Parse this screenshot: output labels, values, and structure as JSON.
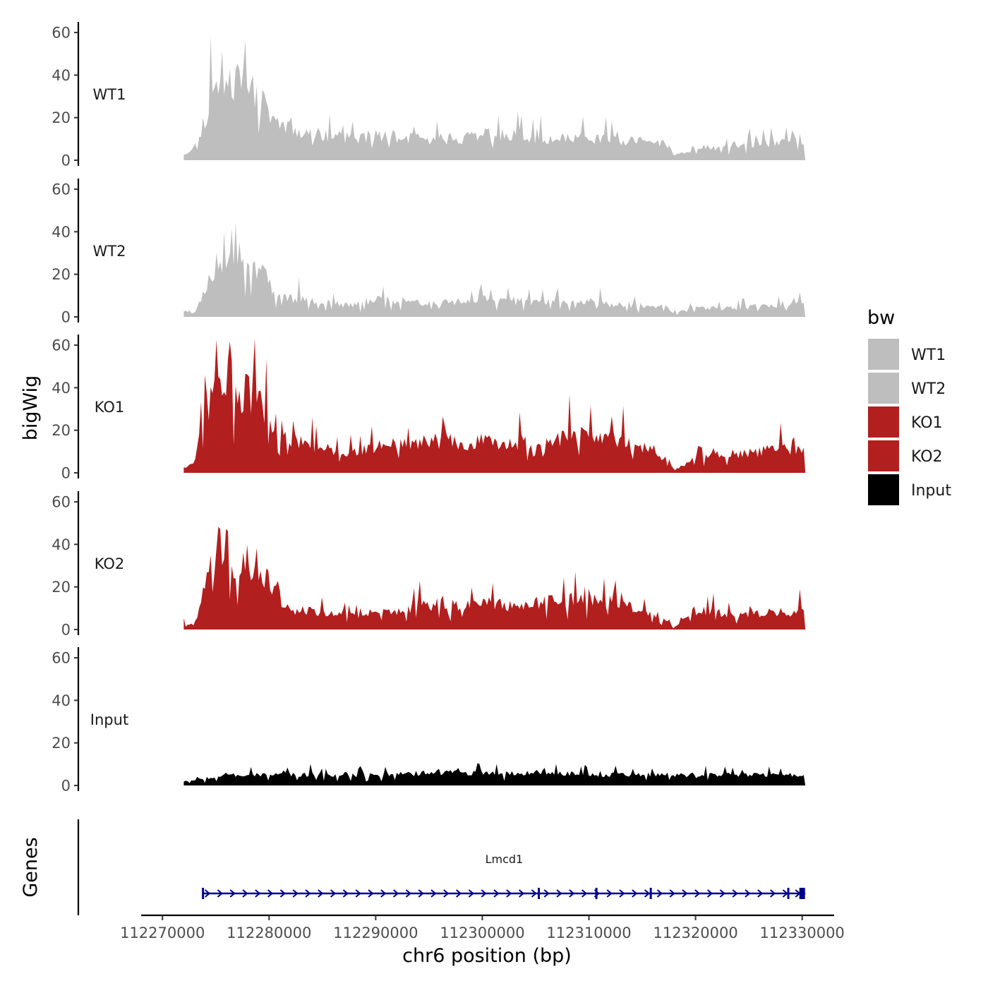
{
  "chart_data": {
    "type": "area",
    "y_axis_title": "bigWig",
    "x_axis_title": "chr6 position (bp)",
    "gene_track_title": "Genes",
    "x_range": [
      112268000,
      112333000
    ],
    "y_range": [
      0,
      65
    ],
    "y_ticks": [
      0,
      20,
      40,
      60
    ],
    "y_tick_labels": [
      "0",
      "20",
      "40",
      "60"
    ],
    "x_ticks": [
      112270000,
      112280000,
      112290000,
      112300000,
      112310000,
      112320000,
      112330000
    ],
    "x_tick_labels": [
      "112270000",
      "112280000",
      "112290000",
      "112300000",
      "112310000",
      "112320000",
      "112330000"
    ],
    "data_start": 112272000,
    "data_end": 112330300,
    "legend": {
      "title": "bw",
      "entries": [
        {
          "label": "WT1",
          "color": "#bebebe"
        },
        {
          "label": "WT2",
          "color": "#bebebe"
        },
        {
          "label": "KO1",
          "color": "#b21f1f"
        },
        {
          "label": "KO2",
          "color": "#b21f1f"
        },
        {
          "label": "Input",
          "color": "#000000"
        }
      ]
    },
    "series": [
      {
        "name": "WT1",
        "color": "#bebebe",
        "profile": [
          [
            112272000,
            3
          ],
          [
            112273000,
            6
          ],
          [
            112274000,
            20
          ],
          [
            112275000,
            38
          ],
          [
            112276000,
            42
          ],
          [
            112277000,
            36
          ],
          [
            112278000,
            35
          ],
          [
            112279000,
            30
          ],
          [
            112280000,
            22
          ],
          [
            112281000,
            17
          ],
          [
            112282000,
            15
          ],
          [
            112284000,
            13
          ],
          [
            112286000,
            11
          ],
          [
            112288000,
            10
          ],
          [
            112290000,
            12
          ],
          [
            112292000,
            11
          ],
          [
            112294000,
            10
          ],
          [
            112296000,
            10
          ],
          [
            112298000,
            10
          ],
          [
            112300000,
            12
          ],
          [
            112302000,
            12
          ],
          [
            112304000,
            11
          ],
          [
            112306000,
            9
          ],
          [
            112308000,
            11
          ],
          [
            112310000,
            10
          ],
          [
            112312000,
            10
          ],
          [
            112314000,
            9
          ],
          [
            112316000,
            9
          ],
          [
            112317500,
            7
          ],
          [
            112318000,
            2
          ],
          [
            112319000,
            4
          ],
          [
            112320000,
            6
          ],
          [
            112322000,
            6
          ],
          [
            112324000,
            7
          ],
          [
            112326000,
            8
          ],
          [
            112328000,
            9
          ],
          [
            112330300,
            10
          ]
        ]
      },
      {
        "name": "WT2",
        "color": "#bebebe",
        "profile": [
          [
            112272000,
            3
          ],
          [
            112273000,
            2
          ],
          [
            112274000,
            12
          ],
          [
            112275000,
            24
          ],
          [
            112276000,
            30
          ],
          [
            112277000,
            24
          ],
          [
            112278000,
            26
          ],
          [
            112279000,
            24
          ],
          [
            112280000,
            16
          ],
          [
            112281000,
            10
          ],
          [
            112282000,
            9
          ],
          [
            112284000,
            8
          ],
          [
            112286000,
            6
          ],
          [
            112288000,
            6
          ],
          [
            112290000,
            8
          ],
          [
            112292000,
            8
          ],
          [
            112294000,
            7
          ],
          [
            112296000,
            7
          ],
          [
            112298000,
            7
          ],
          [
            112300000,
            8
          ],
          [
            112302000,
            8
          ],
          [
            112304000,
            7
          ],
          [
            112306000,
            7
          ],
          [
            112308000,
            7
          ],
          [
            112310000,
            7
          ],
          [
            112312000,
            6
          ],
          [
            112314000,
            5
          ],
          [
            112316000,
            6
          ],
          [
            112317500,
            4
          ],
          [
            112318000,
            2
          ],
          [
            112319000,
            3
          ],
          [
            112320000,
            4
          ],
          [
            112322000,
            4
          ],
          [
            112324000,
            4
          ],
          [
            112326000,
            5
          ],
          [
            112328000,
            6
          ],
          [
            112330300,
            7
          ]
        ]
      },
      {
        "name": "KO1",
        "color": "#b21f1f",
        "profile": [
          [
            112272000,
            3
          ],
          [
            112273000,
            4
          ],
          [
            112274000,
            40
          ],
          [
            112275000,
            50
          ],
          [
            112276000,
            44
          ],
          [
            112277000,
            36
          ],
          [
            112278000,
            38
          ],
          [
            112279000,
            35
          ],
          [
            112280000,
            27
          ],
          [
            112281000,
            20
          ],
          [
            112282000,
            15
          ],
          [
            112284000,
            13
          ],
          [
            112286000,
            11
          ],
          [
            112288000,
            10
          ],
          [
            112290000,
            12
          ],
          [
            112292000,
            13
          ],
          [
            112294000,
            14
          ],
          [
            112296000,
            15
          ],
          [
            112298000,
            14
          ],
          [
            112300000,
            15
          ],
          [
            112302000,
            15
          ],
          [
            112304000,
            14
          ],
          [
            112306000,
            15
          ],
          [
            112308000,
            17
          ],
          [
            112310000,
            17
          ],
          [
            112312000,
            16
          ],
          [
            112314000,
            13
          ],
          [
            112316000,
            11
          ],
          [
            112317500,
            5
          ],
          [
            112318000,
            1
          ],
          [
            112319000,
            4
          ],
          [
            112320000,
            7
          ],
          [
            112322000,
            8
          ],
          [
            112324000,
            9
          ],
          [
            112326000,
            10
          ],
          [
            112328000,
            11
          ],
          [
            112330300,
            11
          ]
        ]
      },
      {
        "name": "KO2",
        "color": "#b21f1f",
        "profile": [
          [
            112272000,
            3
          ],
          [
            112273000,
            2
          ],
          [
            112274000,
            20
          ],
          [
            112275000,
            38
          ],
          [
            112276000,
            38
          ],
          [
            112277000,
            27
          ],
          [
            112278000,
            32
          ],
          [
            112279000,
            30
          ],
          [
            112280000,
            24
          ],
          [
            112281000,
            13
          ],
          [
            112282000,
            9
          ],
          [
            112284000,
            9
          ],
          [
            112286000,
            7
          ],
          [
            112288000,
            7
          ],
          [
            112290000,
            8
          ],
          [
            112292000,
            9
          ],
          [
            112294000,
            11
          ],
          [
            112296000,
            12
          ],
          [
            112298000,
            11
          ],
          [
            112300000,
            12
          ],
          [
            112302000,
            12
          ],
          [
            112304000,
            11
          ],
          [
            112306000,
            13
          ],
          [
            112308000,
            14
          ],
          [
            112310000,
            14
          ],
          [
            112312000,
            13
          ],
          [
            112314000,
            10
          ],
          [
            112316000,
            8
          ],
          [
            112317500,
            4
          ],
          [
            112318000,
            1
          ],
          [
            112319000,
            5
          ],
          [
            112320000,
            9
          ],
          [
            112322000,
            8
          ],
          [
            112324000,
            7
          ],
          [
            112326000,
            8
          ],
          [
            112328000,
            8
          ],
          [
            112330300,
            9
          ]
        ]
      },
      {
        "name": "Input",
        "color": "#000000",
        "profile": [
          [
            112272000,
            2
          ],
          [
            112276000,
            5
          ],
          [
            112282000,
            5
          ],
          [
            112290000,
            5
          ],
          [
            112296000,
            6
          ],
          [
            112300000,
            6
          ],
          [
            112306000,
            6
          ],
          [
            112312000,
            5
          ],
          [
            112320000,
            5
          ],
          [
            112326000,
            5
          ],
          [
            112330300,
            5
          ]
        ]
      }
    ],
    "genes": [
      {
        "name": "Lmcd1",
        "start": 112273800,
        "end": 112330300,
        "strand": "+",
        "color": "#00008b",
        "exons": [
          112273800,
          112305300,
          112310700,
          112315800,
          112328700,
          112330000
        ]
      }
    ]
  }
}
